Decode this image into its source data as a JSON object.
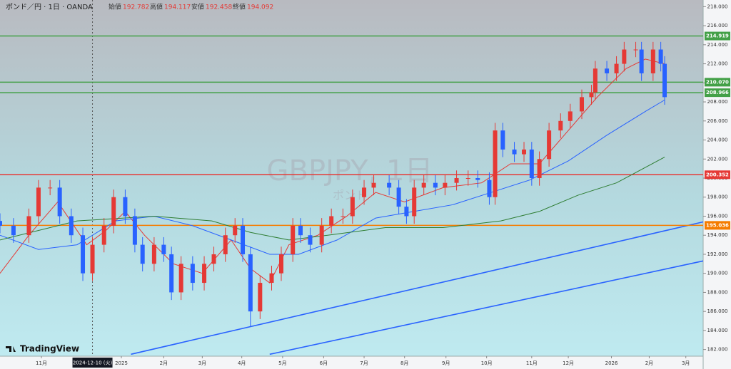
{
  "chart_data": {
    "type": "candlestick",
    "title": "ポンド／円 · 1日 · OANDA",
    "ohlc_legend": [
      {
        "label": "始値",
        "value": 192.782
      },
      {
        "label": "高値",
        "value": 194.117
      },
      {
        "label": "安値",
        "value": 192.458
      },
      {
        "label": "終値",
        "value": 194.092
      }
    ],
    "watermark": "GBPJPY, 1日",
    "watermark_sub": "ポンド",
    "brand": "TradingView",
    "up_color": "#e53935",
    "down_color": "#2962ff",
    "xlim": [
      0,
      365
    ],
    "ylim": [
      181.3,
      218.7
    ],
    "xticks": [
      {
        "value": 21.5,
        "label": "11月"
      },
      {
        "value": 63,
        "label": "2025"
      },
      {
        "value": 85,
        "label": "2月"
      },
      {
        "value": 105,
        "label": "3月"
      },
      {
        "value": 125.5,
        "label": "4月"
      },
      {
        "value": 146.7,
        "label": "5月"
      },
      {
        "value": 168,
        "label": "6月"
      },
      {
        "value": 189,
        "label": "7月"
      },
      {
        "value": 210,
        "label": "8月"
      },
      {
        "value": 231.5,
        "label": "9月"
      },
      {
        "value": 252.6,
        "label": "10月"
      },
      {
        "value": 276,
        "label": "11月"
      },
      {
        "value": 295,
        "label": "12月"
      },
      {
        "value": 317.4,
        "label": "2026"
      },
      {
        "value": 337,
        "label": "2月"
      },
      {
        "value": 356,
        "label": "3月"
      }
    ],
    "crosshair": {
      "value": 48,
      "label": "2024-12-10 (火)"
    },
    "yticks": [
      {
        "value": 182,
        "label": "182.000"
      },
      {
        "value": 184,
        "label": "184.000"
      },
      {
        "value": 186,
        "label": "186.000"
      },
      {
        "value": 188,
        "label": "188.000"
      },
      {
        "value": 190,
        "label": "190.000"
      },
      {
        "value": 192,
        "label": "192.000"
      },
      {
        "value": 194,
        "label": "194.000"
      },
      {
        "value": 196,
        "label": "196.000"
      },
      {
        "value": 198,
        "label": "198.000"
      },
      {
        "value": 200,
        "label": "200.000"
      },
      {
        "value": 202,
        "label": "202.000"
      },
      {
        "value": 204,
        "label": "204.000"
      },
      {
        "value": 206,
        "label": "206.000"
      },
      {
        "value": 208,
        "label": "208.000"
      },
      {
        "value": 210,
        "label": "210.000"
      },
      {
        "value": 212,
        "label": "212.000"
      },
      {
        "value": 214,
        "label": "214.000"
      },
      {
        "value": 216,
        "label": "216.000"
      },
      {
        "value": 218,
        "label": "218.000"
      }
    ],
    "levels": [
      {
        "value": 214.919,
        "label": "214.919",
        "color": "#43a047"
      },
      {
        "value": 210.07,
        "label": "210.070",
        "color": "#43a047"
      },
      {
        "value": 208.966,
        "label": "208.966",
        "color": "#43a047"
      },
      {
        "value": 200.352,
        "label": "200.352",
        "color": "#e53935"
      },
      {
        "value": 195.036,
        "label": "195.036",
        "color": "#f57c00"
      }
    ],
    "x": [
      0,
      7,
      15,
      20,
      26,
      31,
      37,
      43,
      48,
      54,
      59,
      65,
      70,
      74,
      80,
      85,
      89,
      94,
      100,
      106,
      111,
      117,
      122,
      126,
      130,
      135,
      141,
      146,
      152,
      156,
      161,
      167,
      172,
      178,
      183,
      189,
      194,
      202,
      207,
      211,
      215,
      220,
      226,
      231,
      237,
      243,
      248,
      254,
      257,
      261,
      267,
      272,
      276,
      280,
      285,
      291,
      296,
      302,
      307,
      309,
      315,
      320,
      324,
      330,
      333,
      339,
      343,
      345
    ],
    "open": [
      195.5,
      195,
      194,
      196,
      199,
      199,
      196,
      194,
      190,
      193,
      195,
      198,
      196,
      193,
      191,
      193,
      192,
      188,
      191,
      189,
      191,
      192,
      194,
      195,
      192,
      186,
      189,
      190,
      192,
      195,
      194,
      193,
      195,
      196,
      196,
      198,
      199,
      199.5,
      199,
      197,
      196,
      199,
      199.5,
      199,
      199.5,
      200,
      200,
      199.8,
      198,
      205,
      203,
      202.5,
      203,
      200,
      202,
      205,
      206,
      207,
      208.5,
      209,
      211.5,
      211,
      212,
      213.5,
      213.5,
      211,
      213.5,
      212
    ],
    "high": [
      196.3,
      195.8,
      196.8,
      199.8,
      199.8,
      199.8,
      196.8,
      194.8,
      193.8,
      195.8,
      198.8,
      198.8,
      196.8,
      193.8,
      193.8,
      193.8,
      192.8,
      191.8,
      191.8,
      191.8,
      192.8,
      194.8,
      195.8,
      195.8,
      192.8,
      189.8,
      190.8,
      192.8,
      195.8,
      195.8,
      194.8,
      195.8,
      196.8,
      196.8,
      198.8,
      199.8,
      200.3,
      200.3,
      199.8,
      197.8,
      199.8,
      200.3,
      200.3,
      200.3,
      200.8,
      200.8,
      200.8,
      200.6,
      205.8,
      205.8,
      203.8,
      203.8,
      203.8,
      202.8,
      205.8,
      206.8,
      207.8,
      209.3,
      209.8,
      212.3,
      212.3,
      212.8,
      214.3,
      214.3,
      214.3,
      214.3,
      214.3,
      212.8
    ],
    "low": [
      194.2,
      193.2,
      193.2,
      195.2,
      198.2,
      195.2,
      193.2,
      189.2,
      189.2,
      192.2,
      194.2,
      195.2,
      192.2,
      190.2,
      190.2,
      191.2,
      187.2,
      187.2,
      188.2,
      188.2,
      190.2,
      191.2,
      193.2,
      191.2,
      184.4,
      185.2,
      188.2,
      189.2,
      191.2,
      193.2,
      192.2,
      192.2,
      194.2,
      195.2,
      195.2,
      197.2,
      198.2,
      198.2,
      196.2,
      195.2,
      195.2,
      198.2,
      198.2,
      198.2,
      198.7,
      199.2,
      199,
      197.2,
      197.2,
      202.2,
      201.7,
      201.7,
      199.2,
      199.2,
      201.2,
      204.2,
      205.2,
      206.2,
      207.7,
      208.2,
      210.2,
      210.2,
      211.2,
      212.7,
      210.2,
      210.2,
      211.2,
      207.7
    ],
    "close": [
      195,
      194,
      196,
      199,
      199,
      196,
      194,
      190,
      193,
      195,
      198,
      196,
      193,
      191,
      193,
      192,
      188,
      191,
      189,
      191,
      192,
      194,
      195,
      192,
      186,
      189,
      190,
      192,
      195,
      194,
      193,
      195,
      196,
      196,
      198,
      199,
      199.5,
      199,
      197,
      196,
      199,
      199.5,
      199,
      199.5,
      200,
      200,
      199.8,
      198,
      205,
      203,
      202.5,
      203,
      200,
      202,
      205,
      206,
      207,
      208.5,
      209,
      211.5,
      211,
      212,
      213.5,
      213.5,
      211,
      213.5,
      212,
      208.5
    ],
    "moving_averages": [
      {
        "color": "#e53935",
        "x": [
          0,
          15,
          30,
          45,
          55,
          65,
          75,
          90,
          105,
          120,
          130,
          140,
          150,
          165,
          180,
          195,
          210,
          230,
          250,
          265,
          280,
          295,
          310,
          325,
          335,
          345
        ],
        "values": [
          190,
          194,
          197.5,
          193,
          194.5,
          196.5,
          194,
          191,
          190,
          193.5,
          190.5,
          189,
          193,
          194,
          196,
          198.5,
          197.5,
          199,
          199.5,
          201.5,
          201.5,
          205,
          208.5,
          211.5,
          212.5,
          212
        ]
      },
      {
        "color": "#2962ff",
        "x": [
          0,
          20,
          40,
          60,
          80,
          100,
          120,
          140,
          155,
          175,
          195,
          215,
          235,
          255,
          275,
          295,
          315,
          335,
          345
        ],
        "values": [
          194,
          192.5,
          193,
          195.5,
          196,
          195,
          193.5,
          192,
          192,
          193.5,
          195.8,
          196.5,
          197.2,
          198.5,
          199.8,
          201.8,
          204.5,
          207,
          208.2
        ]
      },
      {
        "color": "#2e7d32",
        "x": [
          0,
          40,
          80,
          110,
          130,
          150,
          170,
          200,
          230,
          260,
          280,
          300,
          320,
          345
        ],
        "values": [
          193.5,
          195.5,
          196,
          195.5,
          194.3,
          193.5,
          194,
          194.8,
          194.8,
          195.5,
          196.5,
          198.2,
          199.5,
          202.2
        ]
      }
    ],
    "trendlines": [
      {
        "color": "#2962ff",
        "x": [
          68,
          365
        ],
        "values": [
          181.5,
          195.4
        ]
      },
      {
        "color": "#2962ff",
        "x": [
          140,
          365
        ],
        "values": [
          181.5,
          191.3
        ]
      }
    ]
  }
}
